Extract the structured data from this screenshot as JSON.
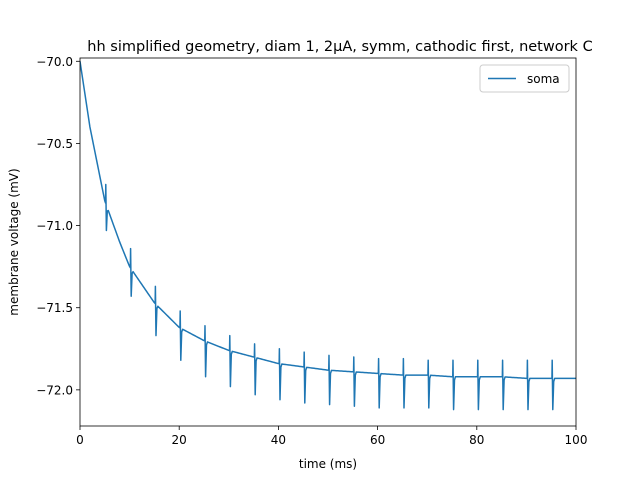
{
  "chart_data": {
    "type": "line",
    "title": "hh simplified geometry, diam 1, 2µA, symm, cathodic first, network C",
    "xlabel": "time (ms)",
    "ylabel": "membrane voltage (mV)",
    "xlim": [
      0,
      100
    ],
    "ylim": [
      -72.22,
      -69.98
    ],
    "xticks": [
      0,
      20,
      40,
      60,
      80,
      100
    ],
    "xtick_labels": [
      "0",
      "20",
      "40",
      "60",
      "80",
      "100"
    ],
    "yticks": [
      -70.0,
      -70.5,
      -71.0,
      -71.5,
      -72.0
    ],
    "ytick_labels": [
      "−70.0",
      "−70.5",
      "−71.0",
      "−71.5",
      "−72.0"
    ],
    "grid": false,
    "legend": {
      "placement": "top-right"
    },
    "series": [
      {
        "name": "soma",
        "color": "#1f77b4",
        "baseline": {
          "x": [
            0,
            2,
            5,
            8,
            10,
            15,
            20,
            25,
            30,
            35,
            40,
            45,
            50,
            55,
            60,
            65,
            70,
            75,
            80,
            85,
            90,
            95,
            100
          ],
          "y": [
            -70.0,
            -70.4,
            -70.85,
            -71.1,
            -71.25,
            -71.47,
            -71.62,
            -71.7,
            -71.76,
            -71.8,
            -71.84,
            -71.86,
            -71.88,
            -71.89,
            -71.9,
            -71.91,
            -71.91,
            -71.92,
            -71.92,
            -71.92,
            -71.93,
            -71.93,
            -71.93
          ]
        },
        "spikes": [
          {
            "x": 5.2,
            "high": -70.75,
            "low": -71.03
          },
          {
            "x": 10.2,
            "high": -71.14,
            "low": -71.43
          },
          {
            "x": 15.2,
            "high": -71.37,
            "low": -71.67
          },
          {
            "x": 20.2,
            "high": -71.52,
            "low": -71.82
          },
          {
            "x": 25.2,
            "high": -71.61,
            "low": -71.92
          },
          {
            "x": 30.2,
            "high": -71.67,
            "low": -71.98
          },
          {
            "x": 35.2,
            "high": -71.72,
            "low": -72.03
          },
          {
            "x": 40.2,
            "high": -71.75,
            "low": -72.06
          },
          {
            "x": 45.2,
            "high": -71.77,
            "low": -72.08
          },
          {
            "x": 50.2,
            "high": -71.79,
            "low": -72.09
          },
          {
            "x": 55.2,
            "high": -71.8,
            "low": -72.1
          },
          {
            "x": 60.2,
            "high": -71.81,
            "low": -72.11
          },
          {
            "x": 65.2,
            "high": -71.81,
            "low": -72.11
          },
          {
            "x": 70.2,
            "high": -71.82,
            "low": -72.11
          },
          {
            "x": 75.2,
            "high": -71.82,
            "low": -72.12
          },
          {
            "x": 80.2,
            "high": -71.82,
            "low": -72.12
          },
          {
            "x": 85.2,
            "high": -71.82,
            "low": -72.12
          },
          {
            "x": 90.2,
            "high": -71.82,
            "low": -72.12
          },
          {
            "x": 95.2,
            "high": -71.82,
            "low": -72.12
          }
        ]
      }
    ]
  }
}
